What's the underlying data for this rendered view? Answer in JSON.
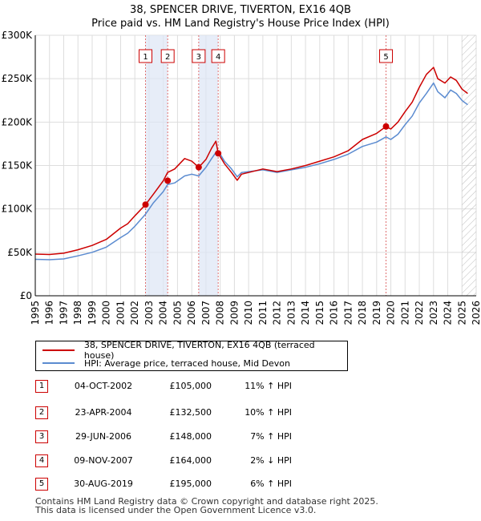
{
  "title": {
    "line1": "38, SPENCER DRIVE, TIVERTON, EX16 4QB",
    "line2": "Price paid vs. HM Land Registry's House Price Index (HPI)"
  },
  "chart_data": {
    "type": "line",
    "title": "38, SPENCER DRIVE, TIVERTON, EX16 4QB",
    "subtitle": "Price paid vs. HM Land Registry's House Price Index (HPI)",
    "xlabel": "",
    "ylabel": "",
    "xlim": [
      1995,
      2026
    ],
    "ylim": [
      0,
      300000
    ],
    "y_ticks": [
      0,
      50000,
      100000,
      150000,
      200000,
      250000,
      300000
    ],
    "y_tick_labels": [
      "£0",
      "£50K",
      "£100K",
      "£150K",
      "£200K",
      "£250K",
      "£300K"
    ],
    "x_ticks": [
      1995,
      1996,
      1997,
      1998,
      1999,
      2000,
      2001,
      2002,
      2003,
      2004,
      2005,
      2006,
      2007,
      2008,
      2009,
      2010,
      2011,
      2012,
      2013,
      2014,
      2015,
      2016,
      2017,
      2018,
      2019,
      2020,
      2021,
      2022,
      2023,
      2024,
      2025,
      2026
    ],
    "x_tick_labels": [
      "1995",
      "1996",
      "1997",
      "1998",
      "1999",
      "2000",
      "2001",
      "2002",
      "2003",
      "2004",
      "2005",
      "2006",
      "2007",
      "2008",
      "2009",
      "2010",
      "2011",
      "2012",
      "2013",
      "2014",
      "2015",
      "2016",
      "2017",
      "2018",
      "2019",
      "2020",
      "2021",
      "2022",
      "2023",
      "2024",
      "2025",
      "2026"
    ],
    "grid": true,
    "legend_position": "below",
    "series": [
      {
        "name": "38, SPENCER DRIVE, TIVERTON, EX16 4QB (terraced house)",
        "color": "#cc0000",
        "x": [
          1995.0,
          1996.0,
          1997.0,
          1998.0,
          1999.0,
          2000.0,
          2001.0,
          2001.5,
          2002.0,
          2002.75,
          2003.3,
          2004.0,
          2004.3,
          2004.8,
          2005.5,
          2006.0,
          2006.49,
          2007.0,
          2007.4,
          2007.7,
          2007.86,
          2008.3,
          2008.8,
          2009.2,
          2009.5,
          2010.0,
          2011.0,
          2012.0,
          2013.0,
          2014.0,
          2015.0,
          2016.0,
          2017.0,
          2018.0,
          2019.0,
          2019.66,
          2020.0,
          2020.5,
          2021.0,
          2021.5,
          2022.0,
          2022.5,
          2023.0,
          2023.3,
          2023.8,
          2024.2,
          2024.6,
          2025.0,
          2025.4
        ],
        "values": [
          48000,
          47500,
          49000,
          53000,
          58000,
          65000,
          78000,
          83000,
          92000,
          105000,
          117000,
          132500,
          142000,
          146000,
          158000,
          155000,
          148000,
          157000,
          170000,
          178000,
          164000,
          152000,
          142000,
          133000,
          140000,
          142000,
          146000,
          143000,
          146000,
          150000,
          155000,
          160000,
          167000,
          180000,
          187000,
          195000,
          192000,
          200000,
          212000,
          223000,
          240000,
          255000,
          263000,
          250000,
          245000,
          252000,
          248000,
          238000,
          233000
        ]
      },
      {
        "name": "HPI: Average price, terraced house, Mid Devon",
        "color": "#5b8bd0",
        "x": [
          1995.0,
          1996.0,
          1997.0,
          1998.0,
          1999.0,
          2000.0,
          2001.0,
          2001.5,
          2002.0,
          2002.75,
          2003.3,
          2004.0,
          2004.3,
          2004.8,
          2005.5,
          2006.0,
          2006.49,
          2007.0,
          2007.4,
          2007.7,
          2007.86,
          2008.3,
          2008.8,
          2009.2,
          2009.5,
          2010.0,
          2011.0,
          2012.0,
          2013.0,
          2014.0,
          2015.0,
          2016.0,
          2017.0,
          2018.0,
          2019.0,
          2019.66,
          2020.0,
          2020.5,
          2021.0,
          2021.5,
          2022.0,
          2022.5,
          2023.0,
          2023.3,
          2023.8,
          2024.2,
          2024.6,
          2025.0,
          2025.4
        ],
        "values": [
          42000,
          41500,
          42500,
          46000,
          50000,
          56000,
          67000,
          72000,
          80000,
          94000,
          107000,
          120000,
          128000,
          130000,
          138000,
          140000,
          138000,
          148000,
          158000,
          165000,
          167000,
          155000,
          146000,
          137000,
          142000,
          143000,
          145000,
          142000,
          145000,
          148000,
          152000,
          157000,
          163000,
          172000,
          177000,
          183000,
          180000,
          186000,
          197000,
          207000,
          222000,
          233000,
          245000,
          235000,
          228000,
          237000,
          233000,
          225000,
          220000
        ]
      }
    ],
    "sales": [
      {
        "label": "1",
        "x": 2002.75,
        "value": 105000
      },
      {
        "label": "2",
        "x": 2004.31,
        "value": 132500
      },
      {
        "label": "3",
        "x": 2006.49,
        "value": 148000
      },
      {
        "label": "4",
        "x": 2007.86,
        "value": 164000
      },
      {
        "label": "5",
        "x": 2019.66,
        "value": 195000
      }
    ],
    "shaded_ranges": [
      [
        2002.75,
        2004.31
      ],
      [
        2006.49,
        2007.86
      ]
    ],
    "future_hatch_from": 2025.0
  },
  "legend": {
    "items": [
      {
        "label": "38, SPENCER DRIVE, TIVERTON, EX16 4QB (terraced house)",
        "color": "#cc0000"
      },
      {
        "label": "HPI: Average price, terraced house, Mid Devon",
        "color": "#5b8bd0"
      }
    ]
  },
  "transactions": [
    {
      "num": "1",
      "date": "04-OCT-2002",
      "price": "£105,000",
      "hpi": "11% ↑ HPI"
    },
    {
      "num": "2",
      "date": "23-APR-2004",
      "price": "£132,500",
      "hpi": "10% ↑ HPI"
    },
    {
      "num": "3",
      "date": "29-JUN-2006",
      "price": "£148,000",
      "hpi": "7% ↑ HPI"
    },
    {
      "num": "4",
      "date": "09-NOV-2007",
      "price": "£164,000",
      "hpi": "2% ↓ HPI"
    },
    {
      "num": "5",
      "date": "30-AUG-2019",
      "price": "£195,000",
      "hpi": "6% ↑ HPI"
    }
  ],
  "footer": {
    "line1": "Contains HM Land Registry data © Crown copyright and database right 2025.",
    "line2": "This data is licensed under the Open Government Licence v3.0."
  }
}
